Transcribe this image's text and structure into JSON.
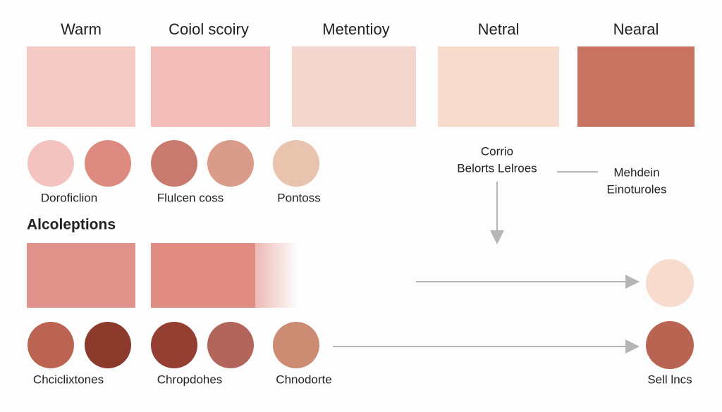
{
  "headers": [
    "Warm",
    "Coiol scoiry",
    "Metentioy",
    "Netral",
    "Nearal"
  ],
  "top_swatches": [
    "#f5c9c4",
    "#f2bdb8",
    "#f3d6cd",
    "#f7dccd",
    "#c97463"
  ],
  "top_circles": [
    "#f2c3bf",
    "#dd8a80",
    "#c97a6e",
    "#d99c8a",
    "#e8c3ae"
  ],
  "top_labels": [
    "Doroficlion",
    "Flulcen coss",
    "Pontoss"
  ],
  "note": {
    "lines": [
      "Corrio",
      "Belorts Lelroes"
    ],
    "side": [
      "Mehdein",
      "Einoturoles"
    ]
  },
  "section_title": "Alcoleptions",
  "bottom_swatches": [
    "#e0938a",
    "#e08c82"
  ],
  "bottom_circles": [
    "#bb6453",
    "#8b3a2c",
    "#943f31",
    "#b2655a",
    "#cc8c74"
  ],
  "bottom_labels": [
    "Chciclixtones",
    "Chropdohes",
    "Chnodorte"
  ],
  "result_circles": [
    "#f7dccd",
    "#b96452"
  ],
  "result_label": "Sell lncs"
}
